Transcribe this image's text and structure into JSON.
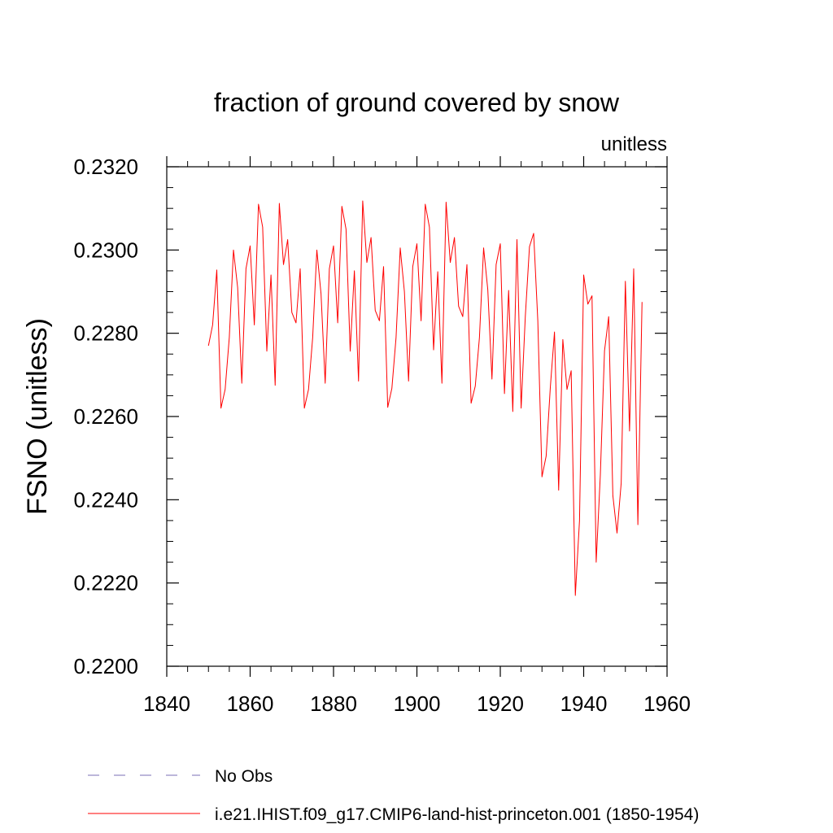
{
  "chart_data": {
    "type": "line",
    "title": "fraction of ground covered by snow",
    "units_label": "unitless",
    "ylabel": "FSNO  (unitless)",
    "xlabel": "",
    "xlim": [
      1840,
      1960
    ],
    "ylim": [
      0.22,
      0.232
    ],
    "x_ticks": [
      1840,
      1860,
      1880,
      1900,
      1920,
      1940,
      1960
    ],
    "x_tick_labels": [
      "1840",
      "1860",
      "1880",
      "1900",
      "1920",
      "1940",
      "1960"
    ],
    "y_ticks": [
      0.22,
      0.222,
      0.224,
      0.226,
      0.228,
      0.23,
      0.232
    ],
    "y_tick_labels": [
      "0.2200",
      "0.2220",
      "0.2240",
      "0.2260",
      "0.2280",
      "0.2300",
      "0.2320"
    ],
    "grid": false,
    "legend_position": "bottom",
    "series": [
      {
        "name": "i.e21.IHIST.f09_g17.CMIP6-land-hist-princeton.001 (1850-1954)",
        "color": "#ff0000",
        "style": "solid",
        "x": [
          1850,
          1851,
          1852,
          1853,
          1854,
          1855,
          1856,
          1857,
          1858,
          1859,
          1860,
          1861,
          1862,
          1863,
          1864,
          1865,
          1866,
          1867,
          1868,
          1869,
          1870,
          1871,
          1872,
          1873,
          1874,
          1875,
          1876,
          1877,
          1878,
          1879,
          1880,
          1881,
          1882,
          1883,
          1884,
          1885,
          1886,
          1887,
          1888,
          1889,
          1890,
          1891,
          1892,
          1893,
          1894,
          1895,
          1896,
          1897,
          1898,
          1899,
          1900,
          1901,
          1902,
          1903,
          1904,
          1905,
          1906,
          1907,
          1908,
          1909,
          1910,
          1911,
          1912,
          1913,
          1914,
          1915,
          1916,
          1917,
          1918,
          1919,
          1920,
          1921,
          1922,
          1923,
          1924,
          1925,
          1926,
          1927,
          1928,
          1929,
          1930,
          1931,
          1932,
          1933,
          1934,
          1935,
          1936,
          1937,
          1938,
          1939,
          1940,
          1941,
          1942,
          1943,
          1944,
          1945,
          1946,
          1947,
          1948,
          1949,
          1950,
          1951,
          1952,
          1953,
          1954
        ],
        "values": [
          0.2277,
          0.2282,
          0.22952,
          0.2262,
          0.22665,
          0.2279,
          0.23,
          0.2291,
          0.2268,
          0.22955,
          0.2301,
          0.2282,
          0.2311,
          0.23055,
          0.22757,
          0.2294,
          0.22675,
          0.23112,
          0.22965,
          0.23025,
          0.2285,
          0.22825,
          0.22955,
          0.2262,
          0.22665,
          0.2279,
          0.23,
          0.22895,
          0.2268,
          0.22955,
          0.2301,
          0.22825,
          0.23105,
          0.2305,
          0.22757,
          0.2295,
          0.22685,
          0.23118,
          0.2297,
          0.2303,
          0.22855,
          0.2283,
          0.2296,
          0.22622,
          0.22668,
          0.2279,
          0.23005,
          0.229,
          0.22685,
          0.2296,
          0.23015,
          0.2283,
          0.2311,
          0.23055,
          0.2276,
          0.22948,
          0.2268,
          0.23115,
          0.2297,
          0.2303,
          0.22865,
          0.2284,
          0.22965,
          0.22632,
          0.22673,
          0.2279,
          0.23005,
          0.22905,
          0.2269,
          0.22965,
          0.23015,
          0.22655,
          0.22903,
          0.22612,
          0.23025,
          0.2262,
          0.2284,
          0.23008,
          0.2304,
          0.2283,
          0.22455,
          0.22505,
          0.2267,
          0.22803,
          0.22423,
          0.22785,
          0.22665,
          0.2271,
          0.2217,
          0.2235,
          0.2294,
          0.2287,
          0.2289,
          0.2225,
          0.2246,
          0.22758,
          0.2284,
          0.2241,
          0.2232,
          0.2244,
          0.22925,
          0.22565,
          0.22955,
          0.2234,
          0.22875
        ]
      }
    ],
    "legend": [
      {
        "label": "No Obs",
        "color": "#7a6fb5",
        "style": "dashed"
      },
      {
        "label": "i.e21.IHIST.f09_g17.CMIP6-land-hist-princeton.001 (1850-1954)",
        "color": "#ff0000",
        "style": "solid"
      }
    ]
  }
}
